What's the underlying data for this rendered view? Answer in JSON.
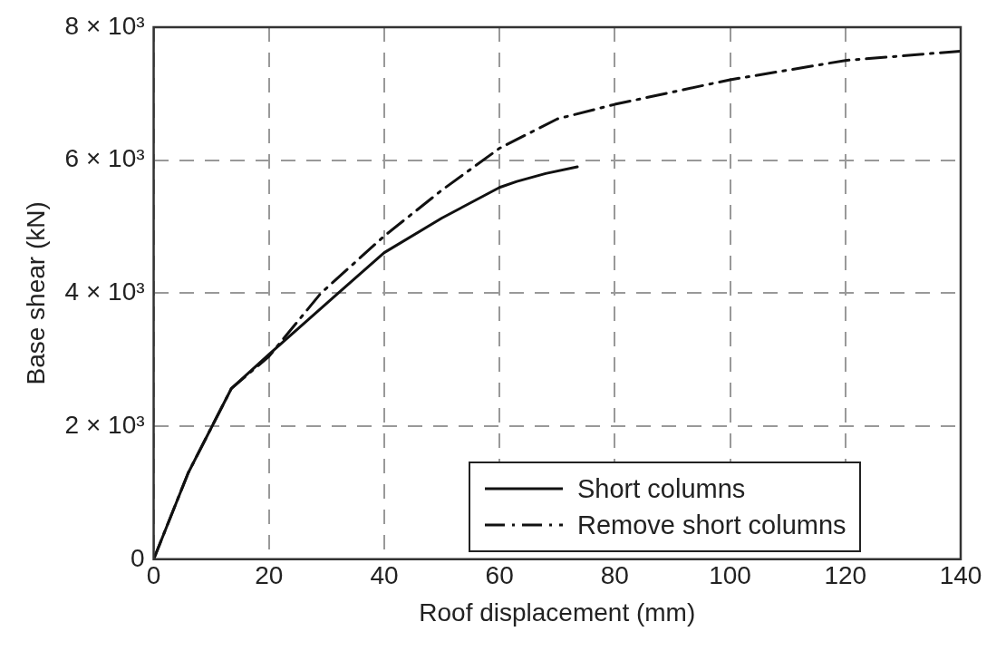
{
  "chart_data": {
    "type": "line",
    "xlabel": "Roof displacement (mm)",
    "ylabel": "Base shear (kN)",
    "xlim": [
      0,
      140
    ],
    "xticks": [
      0,
      20,
      40,
      60,
      80,
      100,
      120,
      140
    ],
    "ylim": [
      0,
      8000
    ],
    "yticks": [
      0,
      {
        "value": 2000,
        "label": "2 × 10³"
      },
      {
        "value": 4000,
        "label": "4 × 10³"
      },
      {
        "value": 6000,
        "label": "6 × 10³"
      },
      {
        "value": 8000,
        "label": "8 × 10³"
      }
    ],
    "grid": true,
    "legend": "bottom right",
    "marker": "none",
    "series": [
      {
        "name": "Short columns",
        "color": "#111111",
        "line_style": "solid",
        "x": [
          0,
          6,
          13.5,
          20,
          32,
          40,
          50,
          60,
          63,
          68,
          73.5
        ],
        "values": [
          0,
          1300,
          2570,
          3080,
          4000,
          4610,
          5130,
          5590,
          5680,
          5800,
          5900
        ]
      },
      {
        "name": "Remove short columns",
        "color": "#111111",
        "line_style": "dashdot",
        "x": [
          0,
          6,
          13.5,
          20,
          29,
          40,
          50,
          60,
          70,
          80,
          100,
          120,
          140
        ],
        "values": [
          0,
          1300,
          2570,
          3050,
          4000,
          4860,
          5550,
          6180,
          6620,
          6840,
          7210,
          7500,
          7640
        ]
      }
    ]
  }
}
